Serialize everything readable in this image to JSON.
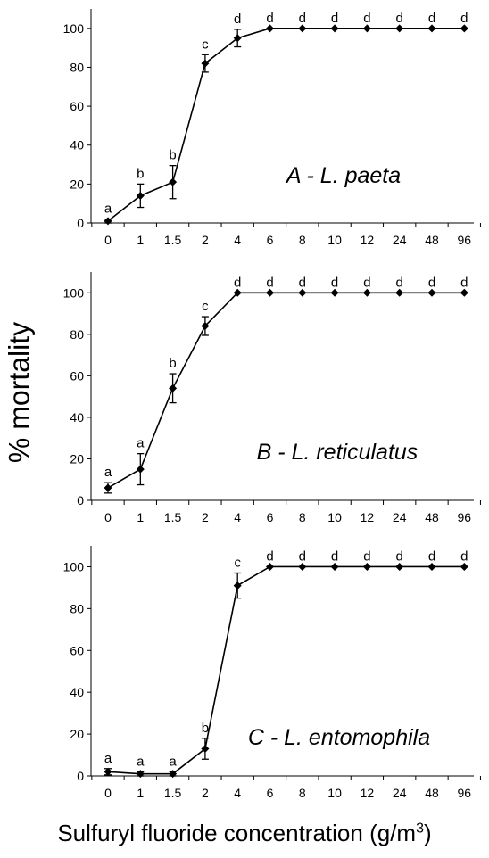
{
  "figure": {
    "ylabel": "% mortality",
    "xlabel_main": "Sulfuryl fluoride concentration (g/m",
    "xlabel_sup": "3",
    "xlabel_close": ")"
  },
  "chart_data": [
    {
      "type": "line",
      "title": "A - L. paeta",
      "categories": [
        "0",
        "1",
        "1.5",
        "2",
        "4",
        "6",
        "8",
        "10",
        "12",
        "24",
        "48",
        "96"
      ],
      "values": [
        1,
        14,
        21,
        82,
        95,
        100,
        100,
        100,
        100,
        100,
        100,
        100
      ],
      "error": [
        1,
        6,
        8.5,
        4.5,
        4.5,
        0,
        0,
        0,
        0,
        0,
        0,
        0
      ],
      "letters": [
        "a",
        "b",
        "b",
        "c",
        "d",
        "d",
        "d",
        "d",
        "d",
        "d",
        "d",
        "d"
      ],
      "yticks": [
        0,
        20,
        40,
        60,
        80,
        100
      ],
      "ylim": [
        0,
        110
      ]
    },
    {
      "type": "line",
      "title": "B - L. reticulatus",
      "categories": [
        "0",
        "1",
        "1.5",
        "2",
        "4",
        "6",
        "8",
        "10",
        "12",
        "24",
        "48",
        "96"
      ],
      "values": [
        6,
        15,
        54,
        84,
        100,
        100,
        100,
        100,
        100,
        100,
        100,
        100
      ],
      "error": [
        2.5,
        7.5,
        7,
        4.5,
        0,
        0,
        0,
        0,
        0,
        0,
        0,
        0
      ],
      "letters": [
        "a",
        "a",
        "b",
        "c",
        "d",
        "d",
        "d",
        "d",
        "d",
        "d",
        "d",
        "d"
      ],
      "yticks": [
        0,
        20,
        40,
        60,
        80,
        100
      ],
      "ylim": [
        0,
        110
      ]
    },
    {
      "type": "line",
      "title": "C - L. entomophila",
      "categories": [
        "0",
        "1",
        "1.5",
        "2",
        "4",
        "6",
        "8",
        "10",
        "12",
        "24",
        "48",
        "96"
      ],
      "values": [
        2,
        1,
        1,
        13,
        91,
        100,
        100,
        100,
        100,
        100,
        100,
        100
      ],
      "error": [
        1.5,
        1,
        1,
        5,
        6,
        0,
        0,
        0,
        0,
        0,
        0,
        0
      ],
      "letters": [
        "a",
        "a",
        "a",
        "b",
        "c",
        "d",
        "d",
        "d",
        "d",
        "d",
        "d",
        "d"
      ],
      "yticks": [
        0,
        20,
        40,
        60,
        80,
        100
      ],
      "ylim": [
        0,
        110
      ]
    }
  ]
}
